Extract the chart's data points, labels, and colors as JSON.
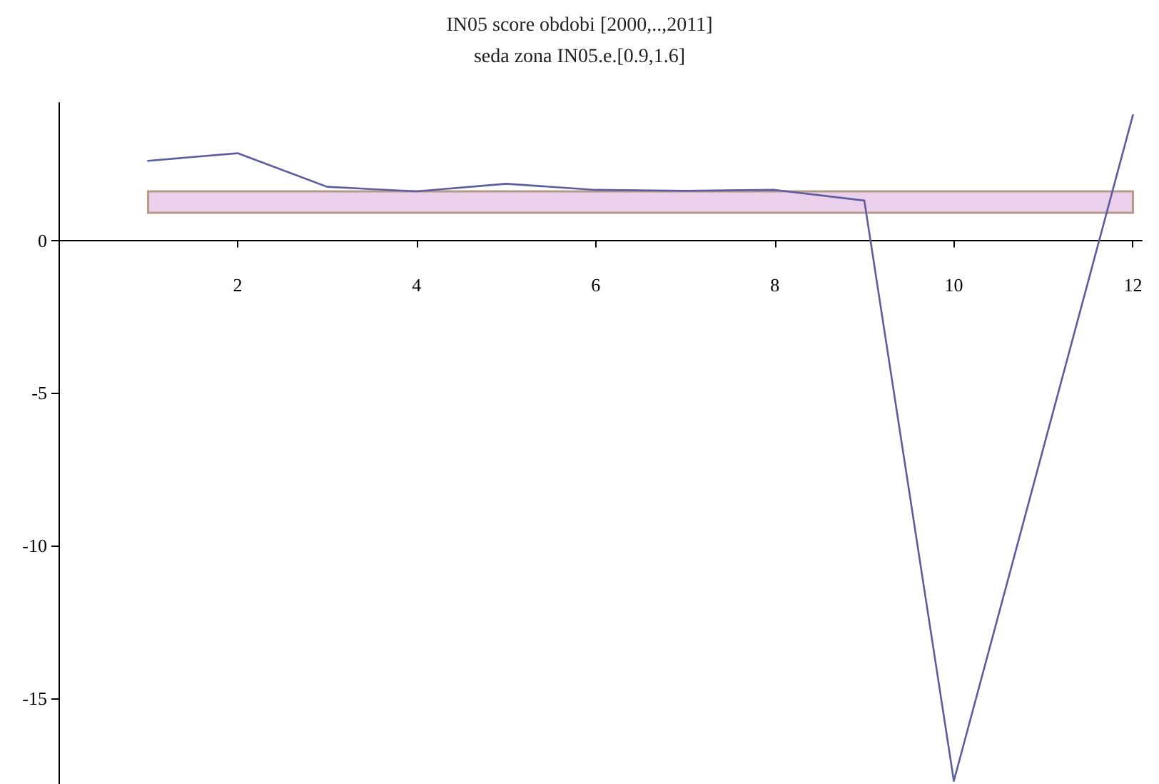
{
  "chart_data": {
    "type": "line",
    "title": "IN05 score obdobi [2000,..,2011]",
    "subtitle": "seda zona IN05.e.[0.9,1.6]",
    "x": [
      1,
      2,
      3,
      4,
      5,
      6,
      7,
      8,
      9,
      10,
      11,
      12
    ],
    "series": [
      {
        "color": "#5c5c9e",
        "values": [
          2.6,
          2.85,
          1.75,
          1.6,
          1.85,
          1.65,
          1.62,
          1.65,
          1.3,
          -17.7,
          -6.8,
          4.1
        ]
      }
    ],
    "xlim": [
      0,
      12.1
    ],
    "xticks": [
      2,
      4,
      6,
      8,
      10,
      12
    ],
    "ylim": [
      -17.8,
      4.5
    ],
    "yticks": [
      -15,
      -10,
      -5,
      0
    ],
    "bands": [
      {
        "axis": "y",
        "from": 0.9,
        "to": 1.6,
        "color": "#ebd0eb"
      }
    ],
    "marker": "none",
    "line_style": "solid"
  }
}
